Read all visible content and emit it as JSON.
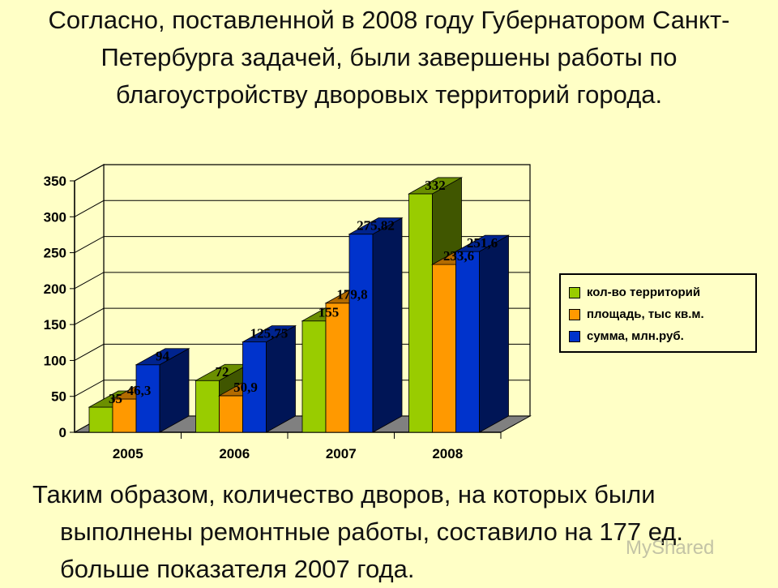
{
  "slide": {
    "title": "Согласно, поставленной в 2008 году Губернатором Санкт-Петербурга задачей, были завершены работы по благоустройству дворовых территорий города.",
    "footer": "Таким образом, количество дворов, на которых были выполнены ремонтные работы, составило на 177 ед. больше показателя 2007 года.",
    "watermark": "MyShared"
  },
  "chart_data": {
    "type": "bar",
    "style": "3d-clustered",
    "categories": [
      "2005",
      "2006",
      "2007",
      "2008"
    ],
    "series": [
      {
        "name": "кол-во территорий",
        "values": [
          35,
          72,
          155,
          332
        ],
        "labels": [
          "35",
          "72",
          "155",
          "332"
        ],
        "color": "#99cc00"
      },
      {
        "name": "площадь, тыс кв.м.",
        "values": [
          46.3,
          50.9,
          179.8,
          233.6
        ],
        "labels": [
          "46,3",
          "50,9",
          "179,8",
          "233,6"
        ],
        "color": "#ff9900"
      },
      {
        "name": "сумма, млн.руб.",
        "values": [
          94,
          125.75,
          275.82,
          251.6
        ],
        "labels": [
          "94",
          "125,75",
          "275,82",
          "251,6"
        ],
        "color": "#0033cc"
      }
    ],
    "yticks": [
      0,
      50,
      100,
      150,
      200,
      250,
      300,
      350
    ],
    "ylim": [
      0,
      350
    ],
    "grid": true,
    "legend": "right",
    "xlabel": "",
    "ylabel": ""
  }
}
